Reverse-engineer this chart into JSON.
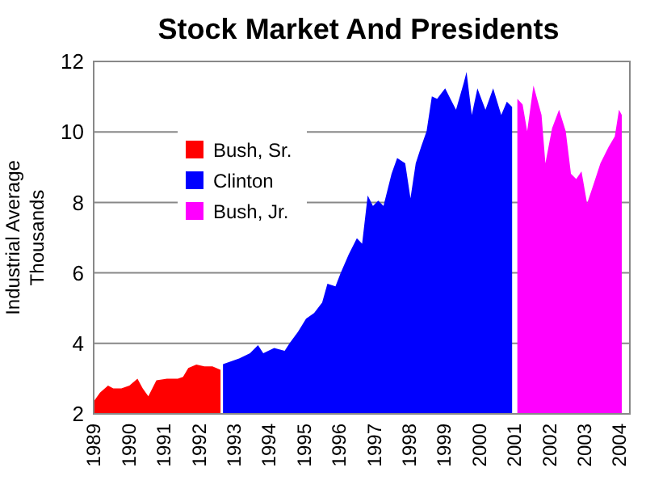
{
  "chart_data": {
    "type": "area",
    "title": "Stock Market And Presidents",
    "ylabel": "Industrial Average\nThousands",
    "xlim": [
      1989,
      2004.3
    ],
    "xticks": [
      1989,
      1990,
      1991,
      1992,
      1993,
      1994,
      1995,
      1996,
      1997,
      1998,
      1999,
      2000,
      2001,
      2002,
      2003,
      2004
    ],
    "ylim": [
      2,
      12
    ],
    "yticks": [
      2,
      4,
      6,
      8,
      10,
      12
    ],
    "grid": "y",
    "legend": "top left",
    "series": [
      {
        "name": "Bush, Sr.",
        "color": "#ff0000",
        "x": [
          1989.0,
          1989.18,
          1989.41,
          1989.56,
          1989.79,
          1990.02,
          1990.25,
          1990.4,
          1990.56,
          1990.79,
          1991.09,
          1991.4,
          1991.55,
          1991.7,
          1991.93,
          1992.16,
          1992.39,
          1992.62
        ],
        "values": [
          2.35,
          2.6,
          2.8,
          2.72,
          2.72,
          2.8,
          3.0,
          2.72,
          2.5,
          2.95,
          3.0,
          3.0,
          3.05,
          3.3,
          3.4,
          3.35,
          3.35,
          3.25
        ]
      },
      {
        "name": "Clinton",
        "color": "#0000ff",
        "x": [
          1992.69,
          1993.15,
          1993.46,
          1993.69,
          1993.84,
          1994.15,
          1994.45,
          1994.6,
          1994.83,
          1995.06,
          1995.29,
          1995.52,
          1995.67,
          1995.9,
          1996.05,
          1996.28,
          1996.51,
          1996.66,
          1996.82,
          1996.97,
          1997.12,
          1997.27,
          1997.5,
          1997.66,
          1997.89,
          1998.04,
          1998.19,
          1998.34,
          1998.5,
          1998.65,
          1998.8,
          1999.03,
          1999.18,
          1999.34,
          1999.56,
          1999.64,
          1999.79,
          1999.95,
          2000.18,
          2000.4,
          2000.63,
          2000.79,
          2000.94
        ],
        "values": [
          3.41,
          3.57,
          3.72,
          3.95,
          3.72,
          3.87,
          3.79,
          4.02,
          4.33,
          4.7,
          4.86,
          5.16,
          5.69,
          5.62,
          6.0,
          6.53,
          6.98,
          6.83,
          8.2,
          7.9,
          8.05,
          7.9,
          8.81,
          9.26,
          9.11,
          8.12,
          9.11,
          9.57,
          10.02,
          11.01,
          10.94,
          11.24,
          10.94,
          10.63,
          11.39,
          11.7,
          10.48,
          11.24,
          10.63,
          11.24,
          10.48,
          10.86,
          10.71
        ]
      },
      {
        "name": "Bush, Jr.",
        "color": "#ff00ff",
        "x": [
          2001.09,
          2001.24,
          2001.37,
          2001.55,
          2001.78,
          2001.89,
          2002.08,
          2002.28,
          2002.47,
          2002.62,
          2002.77,
          2002.92,
          2003.08,
          2003.26,
          2003.46,
          2003.69,
          2003.87,
          2003.99,
          2004.07
        ],
        "values": [
          10.94,
          10.78,
          10.02,
          11.32,
          10.48,
          9.11,
          10.1,
          10.63,
          10.02,
          8.81,
          8.66,
          8.88,
          7.97,
          8.5,
          9.11,
          9.57,
          9.87,
          10.63,
          10.48
        ]
      }
    ]
  }
}
